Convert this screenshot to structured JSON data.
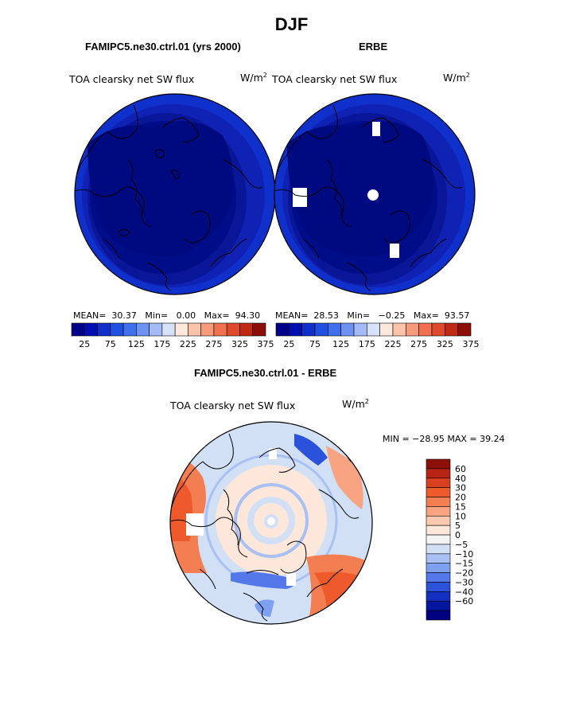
{
  "figure": {
    "title": "DJF"
  },
  "panels": [
    {
      "subtitle": "FAMIPC5.ne30.ctrl.01 (yrs 2000)",
      "field_label": "TOA clearsky net SW flux",
      "units": "W/m",
      "units_exp": "2",
      "mean_label": "MEAN=",
      "mean": "30.37",
      "min_label": "Min=",
      "min": "0.00",
      "max_label": "Max=",
      "max": "94.30"
    },
    {
      "subtitle": "ERBE",
      "field_label": "TOA clearsky net SW flux",
      "units": "W/m",
      "units_exp": "2",
      "mean_label": "MEAN=",
      "mean": "28.53",
      "min_label": "Min=",
      "min": "−0.25",
      "max_label": "Max=",
      "max": "93.57"
    },
    {
      "subtitle": "FAMIPC5.ne30.ctrl.01 - ERBE",
      "field_label": "TOA clearsky net SW flux",
      "units": "W/m",
      "units_exp": "2",
      "min_max_text": "MIN = −28.95  MAX =   39.24"
    }
  ],
  "colorbar_abs": {
    "colors": [
      "#00008a",
      "#0010b0",
      "#1030cc",
      "#2050e0",
      "#4070ee",
      "#6e92f4",
      "#a3baf6",
      "#d6e2fa",
      "#fde8dc",
      "#fbc4aa",
      "#f69a7c",
      "#f07050",
      "#e04a2c",
      "#c02a14",
      "#8c1008"
    ],
    "labels": [
      "25",
      "75",
      "125",
      "175",
      "225",
      "275",
      "325",
      "375"
    ]
  },
  "colorbar_diff": {
    "colors": [
      "#8c1008",
      "#b82414",
      "#d84020",
      "#ee5a2c",
      "#f37e52",
      "#f8a482",
      "#fcc8b0",
      "#fde6da",
      "#f4f4f4",
      "#d2e0f6",
      "#a8c0f4",
      "#7ea0f0",
      "#5478ea",
      "#2c52dc",
      "#1430c0",
      "#0416a0",
      "#000080"
    ],
    "labels": [
      "60",
      "40",
      "30",
      "20",
      "15",
      "10",
      "5",
      "0",
      "−5",
      "−10",
      "−15",
      "−20",
      "−30",
      "−40",
      "−60"
    ]
  }
}
